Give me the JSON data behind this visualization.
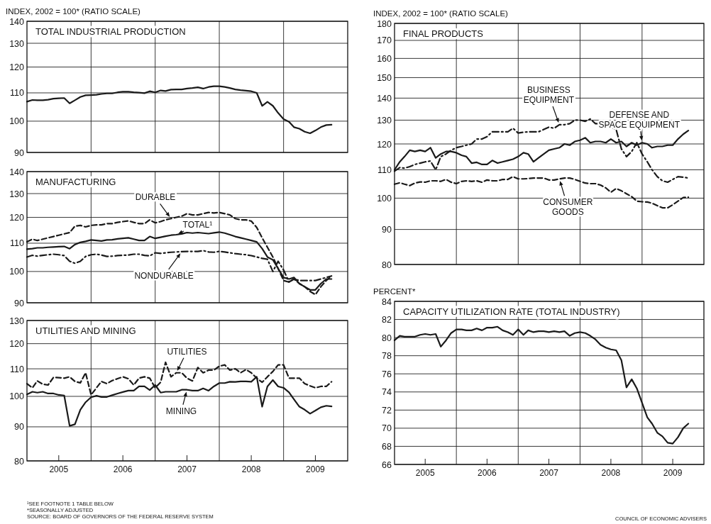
{
  "chart_data": [
    {
      "type": "line",
      "title": "TOTAL INDUSTRIAL PRODUCTION",
      "ylabel": "INDEX, 2002 = 100* (RATIO SCALE)",
      "log": true,
      "grid": true,
      "tick_labels": "y",
      "xlim": [
        "2005-01",
        "2010-01"
      ],
      "xticks": [
        {
          "value": "2006-01",
          "label": null
        },
        {
          "value": "2007-01",
          "label": null
        },
        {
          "value": "2008-01",
          "label": null
        },
        {
          "value": "2009-01",
          "label": null
        }
      ],
      "ylim": [
        90,
        140
      ],
      "yticks": [
        90,
        100,
        110,
        120,
        130,
        140
      ],
      "x": [
        "2005-01",
        "2005-02",
        "2005-03",
        "2005-04",
        "2005-05",
        "2005-06",
        "2005-07",
        "2005-08",
        "2005-09",
        "2005-10",
        "2005-11",
        "2005-12",
        "2006-01",
        "2006-02",
        "2006-03",
        "2006-04",
        "2006-05",
        "2006-06",
        "2006-07",
        "2006-08",
        "2006-09",
        "2006-10",
        "2006-11",
        "2006-12",
        "2007-01",
        "2007-02",
        "2007-03",
        "2007-04",
        "2007-05",
        "2007-06",
        "2007-07",
        "2007-08",
        "2007-09",
        "2007-10",
        "2007-11",
        "2007-12",
        "2008-01",
        "2008-02",
        "2008-03",
        "2008-04",
        "2008-05",
        "2008-06",
        "2008-07",
        "2008-08",
        "2008-09",
        "2008-10",
        "2008-11",
        "2008-12",
        "2009-01",
        "2009-02",
        "2009-03",
        "2009-04",
        "2009-05",
        "2009-06",
        "2009-07",
        "2009-08",
        "2009-09",
        "2009-10"
      ],
      "series": [
        {
          "color": "#1a1a1a",
          "line_style": "solid",
          "values": [
            106.8,
            107.4,
            107.3,
            107.3,
            107.5,
            107.9,
            108,
            108.1,
            106.2,
            107.3,
            108.5,
            109.1,
            109.2,
            109.3,
            109.6,
            109.8,
            109.8,
            110.2,
            110.4,
            110.4,
            110.2,
            110.1,
            109.9,
            110.6,
            110.2,
            110.9,
            110.7,
            111.2,
            111.3,
            111.3,
            111.6,
            111.8,
            112.1,
            111.6,
            112.2,
            112.5,
            112.5,
            112.2,
            111.8,
            111.3,
            111,
            110.8,
            110.6,
            110,
            105.3,
            106.7,
            105.3,
            102.8,
            100.7,
            99.8,
            98,
            97.5,
            96.5,
            96,
            96.9,
            98,
            98.7,
            98.8
          ]
        }
      ],
      "annotations": [
        "¹SEE FOOTNOTE 1 TABLE BELOW",
        "*SEASONALLY ADJUSTED",
        "SOURCE: BOARD OF GOVERNORS OF THE FEDERAL RESERVE SYSTEM"
      ]
    },
    {
      "type": "line",
      "title": "MANUFACTURING",
      "log": true,
      "grid": true,
      "tick_labels": "y",
      "xlim": [
        "2005-01",
        "2010-01"
      ],
      "xticks": [
        {
          "value": "2006-01",
          "label": null
        },
        {
          "value": "2007-01",
          "label": null
        },
        {
          "value": "2008-01",
          "label": null
        },
        {
          "value": "2009-01",
          "label": null
        }
      ],
      "ylim": [
        90,
        140
      ],
      "yticks": [
        90,
        100,
        110,
        120,
        130,
        140
      ],
      "x": [
        "2005-01",
        "2005-02",
        "2005-03",
        "2005-04",
        "2005-05",
        "2005-06",
        "2005-07",
        "2005-08",
        "2005-09",
        "2005-10",
        "2005-11",
        "2005-12",
        "2006-01",
        "2006-02",
        "2006-03",
        "2006-04",
        "2006-05",
        "2006-06",
        "2006-07",
        "2006-08",
        "2006-09",
        "2006-10",
        "2006-11",
        "2006-12",
        "2007-01",
        "2007-02",
        "2007-03",
        "2007-04",
        "2007-05",
        "2007-06",
        "2007-07",
        "2007-08",
        "2007-09",
        "2007-10",
        "2007-11",
        "2007-12",
        "2008-01",
        "2008-02",
        "2008-03",
        "2008-04",
        "2008-05",
        "2008-06",
        "2008-07",
        "2008-08",
        "2008-09",
        "2008-10",
        "2008-11",
        "2008-12",
        "2009-01",
        "2009-02",
        "2009-03",
        "2009-04",
        "2009-05",
        "2009-06",
        "2009-07",
        "2009-08",
        "2009-09",
        "2009-10"
      ],
      "series": [
        {
          "name": "TOTAL¹",
          "color": "#1a1a1a",
          "line_style": "solid",
          "values": [
            107.8,
            108,
            108.3,
            108.3,
            108.5,
            108.6,
            108.7,
            108.8,
            108,
            109.5,
            110.3,
            110.7,
            111.2,
            111,
            110.8,
            111.2,
            111.3,
            111.6,
            111.8,
            112,
            111.5,
            111,
            111,
            112.5,
            111.8,
            112.2,
            112.6,
            113,
            113.2,
            113.5,
            114,
            113.8,
            114,
            113.8,
            113.6,
            113.9,
            114.2,
            113.8,
            113.2,
            112.5,
            112,
            111.5,
            111,
            110.5,
            108,
            105,
            104,
            101,
            98,
            97.5,
            98,
            96,
            95,
            94,
            94,
            96,
            97.5,
            97.5
          ]
        },
        {
          "name": "DURABLE",
          "color": "#1a1a1a",
          "line_style": "dashed",
          "values": [
            110.5,
            111.5,
            111,
            111.5,
            112,
            112.5,
            113,
            113.5,
            114,
            116.5,
            116.8,
            116.2,
            116.8,
            117,
            117,
            117.5,
            117.5,
            118,
            118.3,
            118.6,
            118,
            117.5,
            117.5,
            119,
            117.8,
            118.3,
            119,
            119.5,
            120,
            120.5,
            121.5,
            121,
            121,
            121.5,
            122,
            121.8,
            122,
            121.5,
            121,
            119.5,
            119,
            119,
            118.5,
            116,
            112,
            108.5,
            105,
            101,
            97,
            96.5,
            97.5,
            96,
            95,
            93.5,
            92.5,
            95,
            97,
            98.5
          ]
        },
        {
          "name": "NONDURABLE",
          "color": "#1a1a1a",
          "line_style": "dashdot",
          "values": [
            105,
            105.6,
            105.3,
            105.6,
            105.8,
            106,
            105.8,
            105.5,
            103.5,
            102.8,
            103.5,
            105.2,
            105.8,
            106,
            105.7,
            105.2,
            105.3,
            105.5,
            105.6,
            105.7,
            106,
            106,
            105.6,
            105.4,
            106.5,
            106.3,
            106.5,
            106.7,
            106.8,
            106.9,
            107,
            107,
            107,
            107.3,
            106.8,
            106.7,
            107,
            106.8,
            106.5,
            106.2,
            106,
            105.8,
            105.5,
            105,
            104.5,
            104.2,
            100,
            103.5,
            100.5,
            96.5,
            97.5,
            97,
            97,
            97,
            97,
            97.5,
            98,
            98.5
          ]
        }
      ]
    },
    {
      "type": "line",
      "title": "UTILITIES AND MINING",
      "log": true,
      "grid": true,
      "xlim": [
        "2005-01",
        "2010-01"
      ],
      "xticks": [
        {
          "value": "2005-07",
          "label": "2005"
        },
        {
          "value": "2006-01",
          "label": null
        },
        {
          "value": "2006-07",
          "label": "2006"
        },
        {
          "value": "2007-01",
          "label": null
        },
        {
          "value": "2007-07",
          "label": "2007"
        },
        {
          "value": "2008-01",
          "label": null
        },
        {
          "value": "2008-07",
          "label": "2008"
        },
        {
          "value": "2009-01",
          "label": null
        },
        {
          "value": "2009-07",
          "label": "2009"
        }
      ],
      "ylim": [
        80,
        130
      ],
      "yticks": [
        80,
        90,
        100,
        110,
        120,
        130
      ],
      "x": [
        "2005-01",
        "2005-02",
        "2005-03",
        "2005-04",
        "2005-05",
        "2005-06",
        "2005-07",
        "2005-08",
        "2005-09",
        "2005-10",
        "2005-11",
        "2005-12",
        "2006-01",
        "2006-02",
        "2006-03",
        "2006-04",
        "2006-05",
        "2006-06",
        "2006-07",
        "2006-08",
        "2006-09",
        "2006-10",
        "2006-11",
        "2006-12",
        "2007-01",
        "2007-02",
        "2007-03",
        "2007-04",
        "2007-05",
        "2007-06",
        "2007-07",
        "2007-08",
        "2007-09",
        "2007-10",
        "2007-11",
        "2007-12",
        "2008-01",
        "2008-02",
        "2008-03",
        "2008-04",
        "2008-05",
        "2008-06",
        "2008-07",
        "2008-08",
        "2008-09",
        "2008-10",
        "2008-11",
        "2008-12",
        "2009-01",
        "2009-02",
        "2009-03",
        "2009-04",
        "2009-05",
        "2009-06",
        "2009-07",
        "2009-08",
        "2009-09",
        "2009-10"
      ],
      "series": [
        {
          "name": "UTILITIES",
          "color": "#1a1a1a",
          "line_style": "dashed",
          "values": [
            104.5,
            103,
            105.5,
            104.3,
            104,
            106.8,
            106.7,
            106.5,
            107,
            105.3,
            104.8,
            108.5,
            100.5,
            103,
            105.3,
            104.5,
            105.6,
            106.3,
            107,
            106.3,
            104,
            106.5,
            107,
            106.5,
            103,
            105,
            112.5,
            107,
            108.5,
            108.5,
            106.5,
            105.5,
            110.5,
            108.5,
            109.5,
            109.5,
            111,
            111.5,
            109.5,
            110,
            108.5,
            109.7,
            108.5,
            106.5,
            105,
            107,
            109,
            111.5,
            111.5,
            106.5,
            106.5,
            106.5,
            104.5,
            103.7,
            103,
            103.5,
            103.5,
            105.2
          ]
        },
        {
          "name": "MINING",
          "color": "#1a1a1a",
          "line_style": "solid",
          "values": [
            100.7,
            101.6,
            101.3,
            101.6,
            101,
            101,
            100.5,
            100.3,
            90.3,
            90.8,
            95.5,
            98,
            99.7,
            100.2,
            99.8,
            99.8,
            100.4,
            101,
            101.5,
            102,
            102,
            103.5,
            103.5,
            102.2,
            104,
            101.3,
            101.6,
            101.6,
            101.6,
            102.3,
            102.3,
            102,
            102,
            102.8,
            102,
            103.5,
            104.7,
            104.7,
            105.2,
            105.1,
            105.3,
            105.3,
            105.2,
            107,
            96.5,
            103.5,
            105.8,
            103.5,
            103,
            101.4,
            99,
            96.5,
            95.5,
            94.2,
            95.2,
            96.3,
            96.8,
            96.6
          ]
        }
      ]
    },
    {
      "type": "line",
      "title": "FINAL PRODUCTS",
      "ylabel": "INDEX, 2002 = 100* (RATIO SCALE)",
      "log": true,
      "grid": true,
      "tick_labels": "y",
      "xlim": [
        "2005-01",
        "2010-01"
      ],
      "xticks": [
        {
          "value": "2006-01",
          "label": null
        },
        {
          "value": "2007-01",
          "label": null
        },
        {
          "value": "2008-01",
          "label": null
        },
        {
          "value": "2009-01",
          "label": null
        }
      ],
      "ylim": [
        80,
        180
      ],
      "yticks": [
        80,
        90,
        100,
        110,
        120,
        130,
        140,
        150,
        160,
        170,
        180
      ],
      "x": [
        "2005-01",
        "2005-02",
        "2005-03",
        "2005-04",
        "2005-05",
        "2005-06",
        "2005-07",
        "2005-08",
        "2005-09",
        "2005-10",
        "2005-11",
        "2005-12",
        "2006-01",
        "2006-02",
        "2006-03",
        "2006-04",
        "2006-05",
        "2006-06",
        "2006-07",
        "2006-08",
        "2006-09",
        "2006-10",
        "2006-11",
        "2006-12",
        "2007-01",
        "2007-02",
        "2007-03",
        "2007-04",
        "2007-05",
        "2007-06",
        "2007-07",
        "2007-08",
        "2007-09",
        "2007-10",
        "2007-11",
        "2007-12",
        "2008-01",
        "2008-02",
        "2008-03",
        "2008-04",
        "2008-05",
        "2008-06",
        "2008-07",
        "2008-08",
        "2008-09",
        "2008-10",
        "2008-11",
        "2008-12",
        "2009-01",
        "2009-02",
        "2009-03",
        "2009-04",
        "2009-05",
        "2009-06",
        "2009-07",
        "2009-08",
        "2009-09",
        "2009-10"
      ],
      "series": [
        {
          "name": "BUSINESS EQUIPMENT",
          "color": "#1a1a1a",
          "line_style": "dashdot",
          "values": [
            109.5,
            110.8,
            110.6,
            111.2,
            112,
            112.5,
            113,
            113.3,
            110,
            115,
            116,
            117.5,
            118.5,
            119,
            119.5,
            120,
            122,
            122,
            123,
            125,
            125,
            125,
            125,
            126.5,
            124.5,
            124.8,
            125,
            125,
            125,
            126,
            127,
            126.5,
            128,
            128,
            128.5,
            130,
            130,
            129.5,
            130.5,
            128.5,
            128.5,
            128,
            127,
            126,
            118,
            115,
            117,
            120.5,
            116,
            113,
            110,
            107.5,
            106,
            105.5,
            106.5,
            107.5,
            107.3,
            107
          ]
        },
        {
          "name": "DEFENSE AND SPACE EQUIPMENT",
          "color": "#1a1a1a",
          "line_style": "solid",
          "values": [
            110,
            113,
            115,
            117.5,
            117,
            117.5,
            117,
            118.5,
            114.5,
            116,
            117,
            117,
            116.5,
            115.5,
            115,
            112.5,
            112.8,
            112,
            112,
            113.5,
            112.5,
            113,
            113.5,
            114,
            115,
            116.5,
            116,
            113,
            114.5,
            116,
            117.5,
            118,
            118.5,
            120,
            119.5,
            121,
            121.5,
            122.5,
            120.5,
            121,
            121,
            120.5,
            122,
            120.5,
            121,
            119,
            120.5,
            119.5,
            120.5,
            120,
            118.5,
            119,
            119,
            119.5,
            119.5,
            122,
            124,
            125.5
          ]
        },
        {
          "name": "CONSUMER GOODS",
          "color": "#1a1a1a",
          "line_style": "dashed",
          "values": [
            104.8,
            105.3,
            104.8,
            104.3,
            105.2,
            105.6,
            105.5,
            106,
            106,
            105.8,
            106.5,
            105.5,
            105,
            105.8,
            106,
            105.8,
            106,
            105.5,
            106.3,
            106,
            106,
            106.5,
            106.5,
            107.5,
            106.7,
            106.7,
            106.8,
            107,
            107,
            107,
            106.3,
            106.3,
            106.7,
            107,
            107,
            106.5,
            105.8,
            105.2,
            105,
            105,
            104.5,
            103.5,
            102,
            103.3,
            102.5,
            101.5,
            100.5,
            99,
            98.8,
            98.7,
            98.3,
            97.5,
            96.8,
            96.8,
            97.8,
            99,
            100.2,
            100.3
          ]
        }
      ]
    },
    {
      "type": "line",
      "title": "CAPACITY UTILIZATION RATE (TOTAL INDUSTRY)",
      "ylabel": "PERCENT*",
      "grid": true,
      "xlim": [
        "2005-01",
        "2010-01"
      ],
      "xticks": [
        {
          "value": "2005-07",
          "label": "2005"
        },
        {
          "value": "2006-01",
          "label": null
        },
        {
          "value": "2006-07",
          "label": "2006"
        },
        {
          "value": "2007-01",
          "label": null
        },
        {
          "value": "2007-07",
          "label": "2007"
        },
        {
          "value": "2008-01",
          "label": null
        },
        {
          "value": "2008-07",
          "label": "2008"
        },
        {
          "value": "2009-01",
          "label": null
        },
        {
          "value": "2009-07",
          "label": "2009"
        }
      ],
      "ylim": [
        66,
        84
      ],
      "yticks": [
        66,
        68,
        70,
        72,
        74,
        76,
        78,
        80,
        82,
        84
      ],
      "x": [
        "2005-01",
        "2005-02",
        "2005-03",
        "2005-04",
        "2005-05",
        "2005-06",
        "2005-07",
        "2005-08",
        "2005-09",
        "2005-10",
        "2005-11",
        "2005-12",
        "2006-01",
        "2006-02",
        "2006-03",
        "2006-04",
        "2006-05",
        "2006-06",
        "2006-07",
        "2006-08",
        "2006-09",
        "2006-10",
        "2006-11",
        "2006-12",
        "2007-01",
        "2007-02",
        "2007-03",
        "2007-04",
        "2007-05",
        "2007-06",
        "2007-07",
        "2007-08",
        "2007-09",
        "2007-10",
        "2007-11",
        "2007-12",
        "2008-01",
        "2008-02",
        "2008-03",
        "2008-04",
        "2008-05",
        "2008-06",
        "2008-07",
        "2008-08",
        "2008-09",
        "2008-10",
        "2008-11",
        "2008-12",
        "2009-01",
        "2009-02",
        "2009-03",
        "2009-04",
        "2009-05",
        "2009-06",
        "2009-07",
        "2009-08",
        "2009-09",
        "2009-10"
      ],
      "series": [
        {
          "color": "#1a1a1a",
          "line_style": "solid",
          "values": [
            79.7,
            80.2,
            80.1,
            80.1,
            80.1,
            80.3,
            80.4,
            80.3,
            80.4,
            79,
            79.7,
            80.5,
            80.9,
            80.9,
            80.8,
            80.8,
            81,
            80.8,
            81.1,
            81.1,
            81.2,
            80.8,
            80.6,
            80.3,
            80.9,
            80.3,
            80.8,
            80.6,
            80.7,
            80.7,
            80.6,
            80.7,
            80.6,
            80.7,
            80.2,
            80.5,
            80.6,
            80.5,
            80.2,
            79.8,
            79.2,
            78.9,
            78.7,
            78.6,
            77.5,
            74.5,
            75.4,
            74.4,
            72.8,
            71.2,
            70.5,
            69.5,
            69.1,
            68.4,
            68.3,
            69,
            70,
            70.5
          ]
        }
      ],
      "annotations": [
        "COUNCIL OF ECONOMIC ADVISERS"
      ]
    }
  ]
}
